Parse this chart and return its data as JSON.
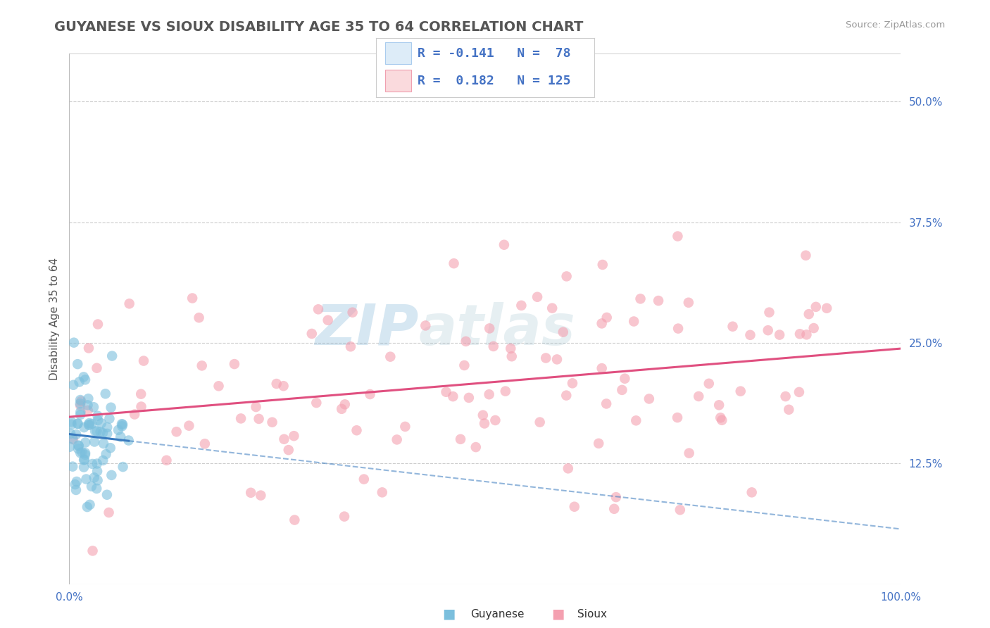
{
  "title": "GUYANESE VS SIOUX DISABILITY AGE 35 TO 64 CORRELATION CHART",
  "source": "Source: ZipAtlas.com",
  "ylabel_label": "Disability Age 35 to 64",
  "xlim": [
    0.0,
    1.0
  ],
  "ylim": [
    0.0,
    0.55
  ],
  "xticks": [
    0.0,
    0.25,
    0.5,
    0.75,
    1.0
  ],
  "xticklabels": [
    "0.0%",
    "",
    "",
    "",
    "100.0%"
  ],
  "yticks": [
    0.0,
    0.125,
    0.25,
    0.375,
    0.5
  ],
  "yticklabels": [
    "",
    "12.5%",
    "25.0%",
    "37.5%",
    "50.0%"
  ],
  "guyanese_R": -0.141,
  "guyanese_N": 78,
  "sioux_R": 0.182,
  "sioux_N": 125,
  "guyanese_color": "#7bbfdd",
  "sioux_color": "#f4a0b0",
  "guyanese_line_color": "#3a7bbf",
  "sioux_line_color": "#e05080",
  "watermark_zip": "ZIP",
  "watermark_atlas": "atlas",
  "background_color": "#ffffff",
  "grid_color": "#cccccc",
  "seed": 42,
  "title_color": "#555555",
  "tick_color": "#4472c4",
  "legend_box_color": "#ddecf8",
  "legend_box_pink": "#fadadd",
  "legend_border": "#cccccc"
}
